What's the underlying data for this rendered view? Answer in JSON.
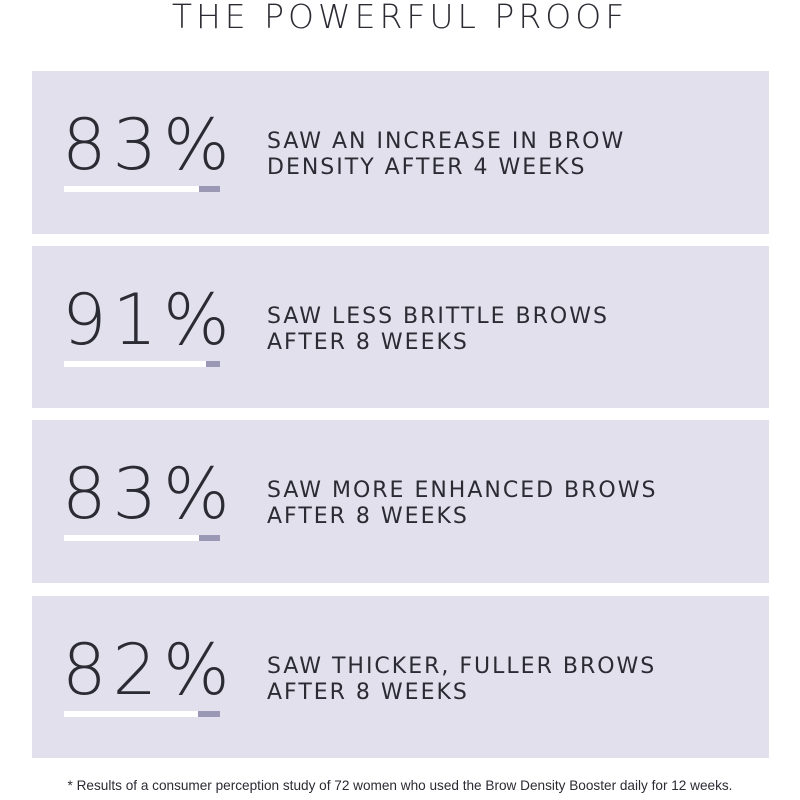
{
  "title": "THE POWERFUL PROOF",
  "stats": [
    {
      "value": "83%",
      "line1": "SAW AN INCREASE IN BROW",
      "line2": "DENSITY AFTER 4 WEEKS",
      "percent": 83
    },
    {
      "value": "91%",
      "line1": "SAW LESS BRITTLE BROWS",
      "line2": "AFTER 8 WEEKS",
      "percent": 91
    },
    {
      "value": "83%",
      "line1": "SAW MORE ENHANCED BROWS",
      "line2": "AFTER 8 WEEKS",
      "percent": 83
    },
    {
      "value": "82%",
      "line1": "SAW THICKER, FULLER BROWS",
      "line2": "AFTER 8 WEEKS",
      "percent": 82
    }
  ],
  "footnote": "* Results of a consumer perception study of 72 women who used the Brow Density Booster daily for 12 weeks.",
  "colors": {
    "card_background": "#e2e0ed",
    "bar_track": "#ffffff",
    "bar_accent": "#9a98b5",
    "text": "#2b2b33"
  }
}
